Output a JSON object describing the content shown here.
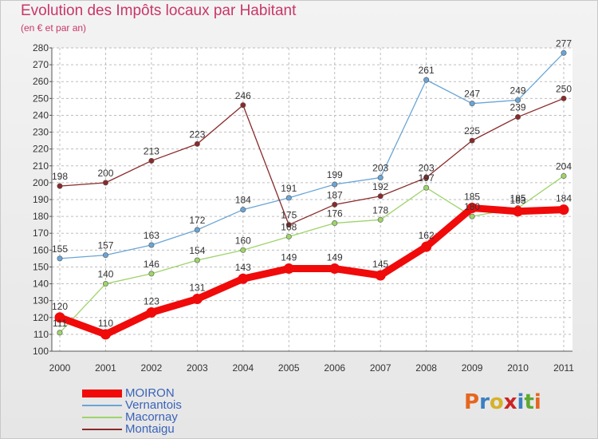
{
  "title": "Evolution des Impôts locaux par Habitant",
  "subtitle": "(en € et par an)",
  "logo": {
    "text": "Proxiti",
    "letters": [
      "P",
      "r",
      "o",
      "x",
      "i",
      "t",
      "i"
    ],
    "colors": [
      "#e5661f",
      "#3a7fc1",
      "#d6b12a",
      "#cc2424",
      "#3a7fc1",
      "#5fa832",
      "#e5661f"
    ]
  },
  "chart_data": {
    "type": "line",
    "title": "Evolution des Impôts locaux par Habitant",
    "ylabel": "(en € et par an)",
    "categories": [
      "2000",
      "2001",
      "2002",
      "2003",
      "2004",
      "2005",
      "2006",
      "2007",
      "2008",
      "2009",
      "2010",
      "2011"
    ],
    "ylim": [
      100,
      280
    ],
    "yticks": [
      100,
      110,
      120,
      130,
      140,
      150,
      160,
      170,
      180,
      190,
      200,
      210,
      220,
      230,
      240,
      250,
      260,
      270,
      280
    ],
    "series": [
      {
        "name": "MOIRON",
        "color": "#f00a0a",
        "values": [
          120,
          110,
          123,
          131,
          143,
          149,
          149,
          145,
          162,
          185,
          183,
          184
        ]
      },
      {
        "name": "Vernantois",
        "color": "#6aa5d6",
        "values": [
          155,
          157,
          163,
          172,
          184,
          191,
          199,
          203,
          261,
          247,
          249,
          277
        ]
      },
      {
        "name": "Macornay",
        "color": "#9ed46a",
        "values": [
          111,
          140,
          146,
          154,
          160,
          168,
          176,
          178,
          197,
          180,
          185,
          204
        ]
      },
      {
        "name": "Montaigu",
        "color": "#8a2a2a",
        "values": [
          198,
          200,
          213,
          223,
          246,
          175,
          187,
          192,
          203,
          225,
          239,
          250
        ]
      }
    ],
    "legend_position": "bottom-left"
  }
}
